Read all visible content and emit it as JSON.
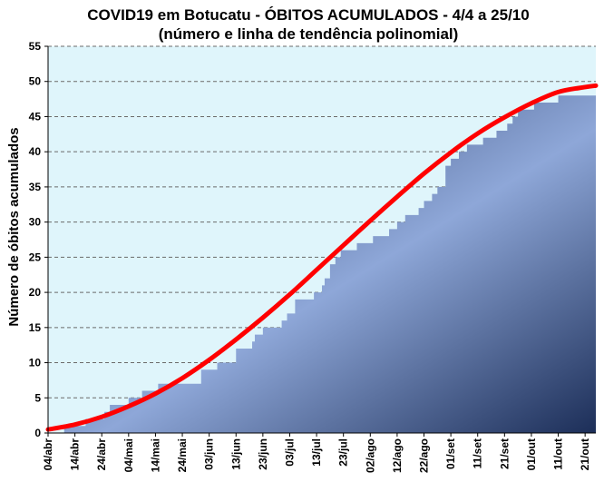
{
  "chart_data": {
    "type": "area",
    "title": "COVID19 em Botucatu - ÓBITOS ACUMULADOS - 4/4 a 25/10",
    "subtitle": "(número e linha de tendência polinomial)",
    "xlabel": "",
    "ylabel": "Número de óbitos acumulados",
    "ylim": [
      0,
      55
    ],
    "yticks": [
      0,
      5,
      10,
      15,
      20,
      25,
      30,
      35,
      40,
      45,
      50,
      55
    ],
    "xlim": [
      0,
      204
    ],
    "grid": true,
    "legend": "none",
    "x_tick_labels": [
      {
        "day": 0,
        "label": "04/abr"
      },
      {
        "day": 10,
        "label": "14/abr"
      },
      {
        "day": 20,
        "label": "24/abr"
      },
      {
        "day": 30,
        "label": "04/mai"
      },
      {
        "day": 40,
        "label": "14/mai"
      },
      {
        "day": 50,
        "label": "24/mai"
      },
      {
        "day": 60,
        "label": "03/jun"
      },
      {
        "day": 70,
        "label": "13/jun"
      },
      {
        "day": 80,
        "label": "23/jun"
      },
      {
        "day": 90,
        "label": "03/jul"
      },
      {
        "day": 100,
        "label": "13/jul"
      },
      {
        "day": 110,
        "label": "23/jul"
      },
      {
        "day": 120,
        "label": "02/ago"
      },
      {
        "day": 130,
        "label": "12/ago"
      },
      {
        "day": 140,
        "label": "22/ago"
      },
      {
        "day": 150,
        "label": "01/set"
      },
      {
        "day": 160,
        "label": "11/set"
      },
      {
        "day": 170,
        "label": "21/set"
      },
      {
        "day": 180,
        "label": "01/out"
      },
      {
        "day": 190,
        "label": "11/out"
      },
      {
        "day": 200,
        "label": "21/out"
      }
    ],
    "series": [
      {
        "type": "area",
        "steps": [
          [
            0,
            0
          ],
          [
            6,
            1
          ],
          [
            14,
            2
          ],
          [
            21,
            3
          ],
          [
            23,
            4
          ],
          [
            30,
            5
          ],
          [
            35,
            6
          ],
          [
            41,
            7
          ],
          [
            57,
            9
          ],
          [
            63,
            10
          ],
          [
            70,
            12
          ],
          [
            76,
            13
          ],
          [
            77,
            14
          ],
          [
            80,
            15
          ],
          [
            87,
            16
          ],
          [
            89,
            17
          ],
          [
            92,
            19
          ],
          [
            99,
            20
          ],
          [
            102,
            21
          ],
          [
            103,
            22
          ],
          [
            105,
            24
          ],
          [
            107,
            25
          ],
          [
            109,
            26
          ],
          [
            115,
            27
          ],
          [
            121,
            28
          ],
          [
            127,
            29
          ],
          [
            130,
            30
          ],
          [
            133,
            31
          ],
          [
            138,
            32
          ],
          [
            140,
            33
          ],
          [
            143,
            34
          ],
          [
            145,
            35
          ],
          [
            148,
            38
          ],
          [
            150,
            39
          ],
          [
            153,
            40
          ],
          [
            156,
            41
          ],
          [
            162,
            42
          ],
          [
            167,
            43
          ],
          [
            171,
            44
          ],
          [
            173,
            45
          ],
          [
            175,
            46
          ],
          [
            181,
            47
          ],
          [
            190,
            48
          ],
          [
            204,
            48
          ]
        ],
        "color": "#1f3a68"
      },
      {
        "type": "line",
        "trend": "polynomial",
        "x": [
          0,
          10,
          20,
          30,
          40,
          50,
          60,
          70,
          80,
          90,
          100,
          110,
          120,
          130,
          140,
          150,
          160,
          170,
          180,
          190,
          200,
          204
        ],
        "values": [
          0.5,
          1.2,
          2.3,
          3.8,
          5.6,
          7.8,
          10.4,
          13.3,
          16.4,
          19.7,
          23.2,
          26.7,
          30.2,
          33.6,
          36.9,
          39.9,
          42.6,
          44.9,
          46.9,
          48.5,
          49.2,
          49.4
        ],
        "color": "#ff0000"
      }
    ],
    "colors": {
      "plot_bg": "#dff5fb",
      "area_dark": "#1c2e58",
      "area_light": "#8ea7d8",
      "grid": "#6b6b6b",
      "trend": "#ff0000"
    }
  }
}
